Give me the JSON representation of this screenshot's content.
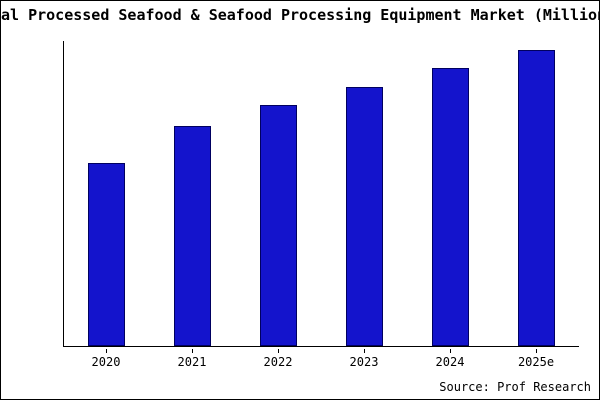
{
  "title": "al Processed Seafood & Seafood Processing Equipment Market (Million",
  "source": "Source: Prof Research",
  "colors": {
    "bar_fill": "#1414cc",
    "bar_edge": "#000060",
    "axis": "#000000",
    "background": "#ffffff"
  },
  "chart_data": {
    "type": "bar",
    "categories": [
      "2020",
      "2021",
      "2022",
      "2023",
      "2024",
      "2025e"
    ],
    "values": [
      60,
      72,
      79,
      85,
      91,
      97
    ],
    "title": "al Processed Seafood & Seafood Processing Equipment Market (Million",
    "xlabel": "",
    "ylabel": "",
    "ylim": [
      0,
      100
    ],
    "grid": false,
    "legend": false,
    "y_axis_tick_labels_visible": false,
    "annotation": "Source: Prof Research"
  }
}
